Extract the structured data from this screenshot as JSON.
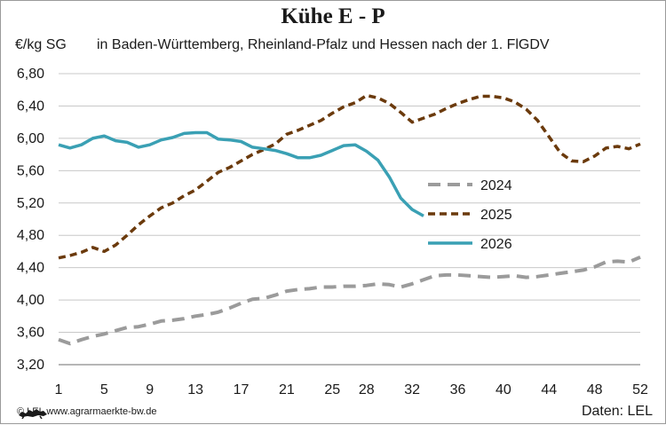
{
  "chart_data": {
    "type": "line",
    "title": "Kühe E - P",
    "unit_label": "€/kg SG",
    "subtitle": "in Baden-Württemberg, Rheinland-Pfalz und Hessen nach der 1. FlGDV",
    "xlabel": "",
    "ylabel": "€/kg SG",
    "ylim": [
      3.2,
      6.8
    ],
    "y_ticks": [
      "3,20",
      "3,60",
      "4,00",
      "4,40",
      "4,80",
      "5,20",
      "5,60",
      "6,00",
      "6,40",
      "6,80"
    ],
    "x_ticks": [
      "1",
      "5",
      "9",
      "13",
      "17",
      "21",
      "25",
      "28",
      "32",
      "36",
      "40",
      "44",
      "48",
      "52"
    ],
    "x_tick_values": [
      1,
      5,
      9,
      13,
      17,
      21,
      25,
      28,
      32,
      36,
      40,
      44,
      48,
      52
    ],
    "xlim": [
      1,
      52
    ],
    "grid": true,
    "legend": "center-right",
    "series": [
      {
        "name": "2024",
        "color": "#9b9b9b",
        "style": "dashed",
        "x": [
          1,
          2,
          3,
          4,
          5,
          6,
          7,
          8,
          9,
          10,
          11,
          12,
          13,
          14,
          15,
          16,
          17,
          18,
          19,
          20,
          21,
          22,
          23,
          24,
          25,
          26,
          27,
          28,
          29,
          30,
          31,
          32,
          33,
          34,
          35,
          36,
          37,
          38,
          39,
          40,
          41,
          42,
          43,
          44,
          45,
          46,
          47,
          48,
          49,
          50,
          51,
          52
        ],
        "values": [
          3.51,
          3.46,
          3.51,
          3.55,
          3.58,
          3.62,
          3.66,
          3.67,
          3.7,
          3.74,
          3.75,
          3.77,
          3.8,
          3.82,
          3.85,
          3.9,
          3.96,
          4.01,
          4.02,
          4.06,
          4.11,
          4.13,
          4.14,
          4.16,
          4.16,
          4.17,
          4.17,
          4.18,
          4.2,
          4.19,
          4.16,
          4.2,
          4.25,
          4.3,
          4.31,
          4.31,
          4.3,
          4.29,
          4.28,
          4.29,
          4.3,
          4.28,
          4.29,
          4.31,
          4.33,
          4.35,
          4.37,
          4.41,
          4.47,
          4.48,
          4.47,
          4.53
        ]
      },
      {
        "name": "2025",
        "color": "#6b3a0c",
        "style": "dashed",
        "x": [
          1,
          2,
          3,
          4,
          5,
          6,
          7,
          8,
          9,
          10,
          11,
          12,
          13,
          14,
          15,
          16,
          17,
          18,
          19,
          20,
          21,
          22,
          23,
          24,
          25,
          26,
          27,
          28,
          29,
          30,
          31,
          32,
          33,
          34,
          35,
          36,
          37,
          38,
          39,
          40,
          41,
          42,
          43,
          44,
          45,
          46,
          47,
          48,
          49,
          50,
          51,
          52
        ],
        "values": [
          4.52,
          4.55,
          4.59,
          4.65,
          4.6,
          4.68,
          4.8,
          4.93,
          5.04,
          5.14,
          5.2,
          5.29,
          5.36,
          5.47,
          5.58,
          5.64,
          5.72,
          5.8,
          5.86,
          5.93,
          6.05,
          6.1,
          6.16,
          6.22,
          6.31,
          6.39,
          6.44,
          6.53,
          6.5,
          6.43,
          6.32,
          6.2,
          6.25,
          6.3,
          6.37,
          6.43,
          6.48,
          6.52,
          6.52,
          6.5,
          6.45,
          6.36,
          6.22,
          6.02,
          5.82,
          5.72,
          5.71,
          5.78,
          5.88,
          5.9,
          5.87,
          5.93
        ]
      },
      {
        "name": "2026",
        "color": "#3aa0b4",
        "style": "solid",
        "x": [
          1,
          2,
          3,
          4,
          5,
          6,
          7,
          8,
          9,
          10,
          11,
          12,
          13,
          14,
          15,
          16,
          17,
          18,
          19,
          20,
          21,
          22,
          23,
          24,
          25,
          26,
          27,
          28,
          29,
          30,
          31,
          32,
          33
        ],
        "values": [
          5.92,
          5.88,
          5.92,
          6.0,
          6.03,
          5.97,
          5.95,
          5.89,
          5.92,
          5.98,
          6.01,
          6.06,
          6.07,
          6.07,
          5.99,
          5.98,
          5.96,
          5.89,
          5.87,
          5.85,
          5.81,
          5.76,
          5.76,
          5.79,
          5.85,
          5.91,
          5.92,
          5.84,
          5.73,
          5.52,
          5.26,
          5.12,
          5.04
        ]
      }
    ]
  },
  "footer": {
    "source_left": "© LEL www.agrarmaerkte-bw.de",
    "source_right": "Daten: LEL"
  }
}
